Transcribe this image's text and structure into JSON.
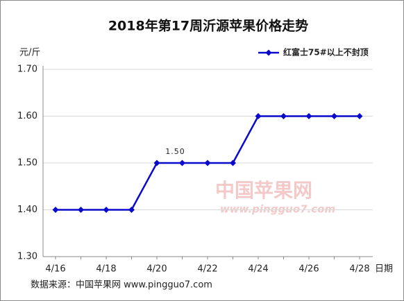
{
  "chart_data": {
    "type": "line",
    "title": "2018年第17周沂源苹果价格走势",
    "y_label": "元/斤",
    "x_label": "日期",
    "source": "数据来源：中国苹果网 www.pingguo7.com",
    "watermark": [
      "中国苹果网",
      "www.pingguo7.com"
    ],
    "categories": [
      "4/16",
      null,
      "4/18",
      null,
      "4/20",
      null,
      "4/22",
      null,
      "4/24",
      null,
      "4/26",
      null,
      "4/28"
    ],
    "series": [
      {
        "name": "红富士75#以上不封顶",
        "color": "#0a0acc",
        "values": [
          1.4,
          1.4,
          1.4,
          1.4,
          1.5,
          1.5,
          1.5,
          1.5,
          1.6,
          1.6,
          1.6,
          1.6,
          1.6
        ],
        "value_labels": [
          null,
          null,
          null,
          null,
          null,
          "1.50",
          null,
          null,
          null,
          null,
          null,
          null,
          null
        ]
      }
    ],
    "ylim": [
      1.3,
      1.7
    ],
    "yticks": [
      {
        "value": 1.3,
        "label": "1.30"
      },
      {
        "value": 1.4,
        "label": "1.40"
      },
      {
        "value": 1.5,
        "label": "1.50"
      },
      {
        "value": 1.6,
        "label": "1.60"
      },
      {
        "value": 1.7,
        "label": "1.70"
      }
    ],
    "grid": true,
    "legend": "top-right"
  }
}
